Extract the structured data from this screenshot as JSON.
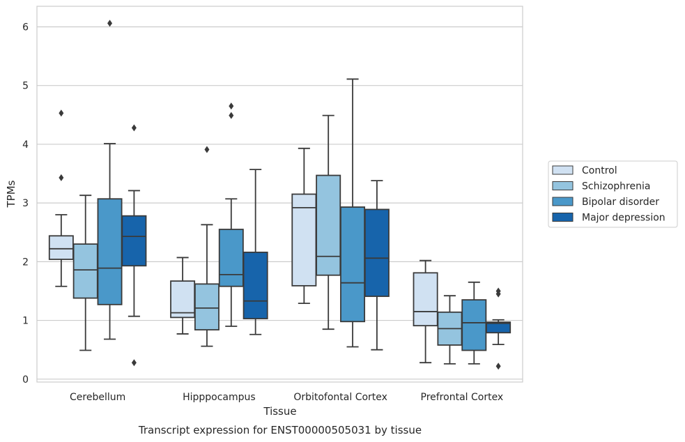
{
  "chart_data": {
    "type": "box",
    "title": "",
    "xlabel": "Tissue",
    "ylabel": "TPMs",
    "caption": "Transcript expression for ENST00000505031 by tissue",
    "ylim": [
      -0.05,
      6.35
    ],
    "yticks": [
      "0",
      "1",
      "2",
      "3",
      "4",
      "5",
      "6"
    ],
    "grid": "horizontal",
    "legend_position": "right",
    "categories": [
      "Cerebellum",
      "Hipppocampus",
      "Orbitofontal Cortex",
      "Prefrontal Cortex"
    ],
    "series": [
      {
        "name": "Control",
        "color": "#d0e1f2",
        "boxes": [
          {
            "whisker_low": 1.58,
            "q1": 2.04,
            "median": 2.22,
            "q3": 2.44,
            "whisker_high": 2.8,
            "outliers": [
              3.43,
              4.53
            ]
          },
          {
            "whisker_low": 0.77,
            "q1": 1.05,
            "median": 1.13,
            "q3": 1.67,
            "whisker_high": 2.07,
            "outliers": []
          },
          {
            "whisker_low": 1.29,
            "q1": 1.59,
            "median": 2.92,
            "q3": 3.15,
            "whisker_high": 3.93,
            "outliers": []
          },
          {
            "whisker_low": 0.28,
            "q1": 0.91,
            "median": 1.15,
            "q3": 1.81,
            "whisker_high": 2.02,
            "outliers": []
          }
        ]
      },
      {
        "name": "Schizophrenia",
        "color": "#94c4df",
        "boxes": [
          {
            "whisker_low": 0.49,
            "q1": 1.38,
            "median": 1.86,
            "q3": 2.3,
            "whisker_high": 3.13,
            "outliers": []
          },
          {
            "whisker_low": 0.56,
            "q1": 0.84,
            "median": 1.21,
            "q3": 1.62,
            "whisker_high": 2.63,
            "outliers": [
              3.91
            ]
          },
          {
            "whisker_low": 0.85,
            "q1": 1.77,
            "median": 2.09,
            "q3": 3.47,
            "whisker_high": 4.49,
            "outliers": []
          },
          {
            "whisker_low": 0.26,
            "q1": 0.58,
            "median": 0.86,
            "q3": 1.14,
            "whisker_high": 1.42,
            "outliers": []
          }
        ]
      },
      {
        "name": "Bipolar disorder",
        "color": "#4a98c9",
        "boxes": [
          {
            "whisker_low": 0.68,
            "q1": 1.27,
            "median": 1.89,
            "q3": 3.07,
            "whisker_high": 4.01,
            "outliers": [
              6.06
            ]
          },
          {
            "whisker_low": 0.9,
            "q1": 1.58,
            "median": 1.78,
            "q3": 2.55,
            "whisker_high": 3.07,
            "outliers": [
              4.49,
              4.65
            ]
          },
          {
            "whisker_low": 0.55,
            "q1": 0.98,
            "median": 1.64,
            "q3": 2.93,
            "whisker_high": 5.11,
            "outliers": []
          },
          {
            "whisker_low": 0.26,
            "q1": 0.49,
            "median": 0.96,
            "q3": 1.35,
            "whisker_high": 1.65,
            "outliers": []
          }
        ]
      },
      {
        "name": "Major depression",
        "color": "#1764ab",
        "boxes": [
          {
            "whisker_low": 1.07,
            "q1": 1.93,
            "median": 2.43,
            "q3": 2.78,
            "whisker_high": 3.21,
            "outliers": [
              0.28,
              4.28
            ]
          },
          {
            "whisker_low": 0.76,
            "q1": 1.03,
            "median": 1.33,
            "q3": 2.16,
            "whisker_high": 3.57,
            "outliers": []
          },
          {
            "whisker_low": 0.5,
            "q1": 1.41,
            "median": 2.06,
            "q3": 2.89,
            "whisker_high": 3.38,
            "outliers": []
          },
          {
            "whisker_low": 0.59,
            "q1": 0.79,
            "median": 0.95,
            "q3": 0.97,
            "whisker_high": 1.01,
            "outliers": [
              0.22,
              1.45,
              1.5
            ]
          }
        ]
      }
    ]
  }
}
